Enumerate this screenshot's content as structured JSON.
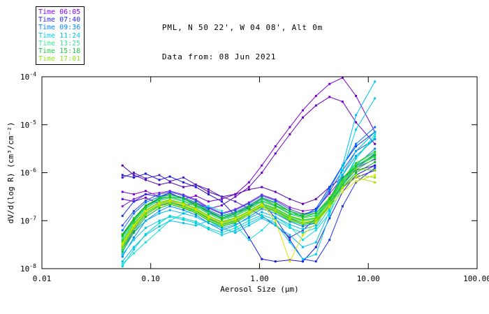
{
  "header": {
    "title_line1": "PML, N 50 22', W 04 08', Alt 0m",
    "title_line2": "Data from: 08 Jun 2021"
  },
  "legend": {
    "items": [
      {
        "label": "Time 06:05",
        "color": "#7F00FF"
      },
      {
        "label": "Time 07:40",
        "color": "#2A2AFF"
      },
      {
        "label": "Time 09:36",
        "color": "#0088FF"
      },
      {
        "label": "Time 11:24",
        "color": "#00CCF0"
      },
      {
        "label": "Time 13:25",
        "color": "#3BE89A"
      },
      {
        "label": "Time 15:18",
        "color": "#22CC44"
      },
      {
        "label": "Time 17:01",
        "color": "#8CE817"
      }
    ]
  },
  "chart_data": {
    "type": "line",
    "title": "PML, N 50 22', W 04 08', Alt 0m — Data from: 08 Jun 2021",
    "xlabel": "Aerosol Size (μm)",
    "ylabel": "dV/d(log R) (cm³/cm⁻²)",
    "x_scale": "log",
    "y_scale": "log",
    "grid": false,
    "marker": "square",
    "legend_position": "top-left",
    "xlim": [
      0.01,
      100
    ],
    "ylim_exp": [
      -8,
      -4
    ],
    "x_ticks": [
      0.01,
      0.1,
      1.0,
      10.0,
      100.0
    ],
    "x_tick_labels": [
      "0.01",
      "0.10",
      "1.00",
      "10.00",
      "100.00"
    ],
    "y_tick_base": "10",
    "y_tick_exponents": [
      -4,
      -5,
      -6,
      -7,
      -8
    ],
    "x": [
      0.055,
      0.07,
      0.09,
      0.12,
      0.15,
      0.2,
      0.26,
      0.34,
      0.45,
      0.6,
      0.8,
      1.05,
      1.4,
      1.9,
      2.5,
      3.3,
      4.4,
      5.8,
      7.7,
      11.5
    ],
    "series": [
      {
        "color": "#7A00D8",
        "y_log10": [
          -6.4,
          -6.45,
          -6.38,
          -6.5,
          -6.42,
          -6.55,
          -6.48,
          -6.6,
          -6.55,
          -6.45,
          -6.2,
          -5.85,
          -5.45,
          -5.05,
          -4.7,
          -4.4,
          -4.15,
          -4.02,
          -4.4,
          -5.15
        ]
      },
      {
        "color": "#6A00C8",
        "y_log10": [
          -6.55,
          -6.6,
          -6.52,
          -6.65,
          -6.58,
          -6.7,
          -6.62,
          -6.75,
          -6.68,
          -6.5,
          -6.3,
          -6.0,
          -5.6,
          -5.2,
          -4.85,
          -4.6,
          -4.42,
          -4.52,
          -4.95,
          -5.4
        ]
      },
      {
        "color": "#5A00B0",
        "y_log10": [
          -5.85,
          -6.05,
          -6.15,
          -6.25,
          -6.2,
          -6.3,
          -6.25,
          -6.4,
          -6.5,
          -6.45,
          -6.35,
          -6.3,
          -6.4,
          -6.55,
          -6.65,
          -6.55,
          -6.3,
          -6.1,
          -5.95,
          -5.85
        ]
      },
      {
        "color": "#4A20C0",
        "y_log10": [
          -6.1,
          -6.0,
          -6.12,
          -6.05,
          -6.18,
          -6.1,
          -6.25,
          -6.35,
          -6.5,
          -6.6,
          -6.75,
          -6.9,
          -7.1,
          -7.35,
          -7.2,
          -6.95,
          -6.6,
          -6.3,
          -6.1,
          -5.95
        ]
      },
      {
        "color": "#8A20E0",
        "y_log10": [
          -6.7,
          -6.55,
          -6.45,
          -6.42,
          -6.38,
          -6.46,
          -6.56,
          -6.72,
          -6.84,
          -6.76,
          -6.62,
          -6.46,
          -6.56,
          -6.72,
          -6.8,
          -6.76,
          -6.44,
          -6.1,
          -5.9,
          -5.72
        ]
      },
      {
        "color": "#1818E0",
        "y_log10": [
          -6.05,
          -6.1,
          -6.02,
          -6.15,
          -6.08,
          -6.2,
          -6.3,
          -6.45,
          -6.6,
          -6.9,
          -7.35,
          -7.8,
          -7.85,
          -7.82,
          -7.85,
          -7.55,
          -6.95,
          -6.4,
          -6.05,
          -5.85
        ]
      },
      {
        "color": "#2030E8",
        "y_log10": [
          -6.9,
          -6.6,
          -6.45,
          -6.5,
          -6.42,
          -6.55,
          -6.65,
          -6.8,
          -6.95,
          -6.85,
          -6.7,
          -6.6,
          -6.95,
          -7.4,
          -7.8,
          -7.85,
          -7.4,
          -6.7,
          -6.2,
          -5.9
        ]
      },
      {
        "color": "#0040F0",
        "y_log10": [
          -7.3,
          -6.95,
          -6.7,
          -6.55,
          -6.5,
          -6.58,
          -6.68,
          -6.82,
          -6.95,
          -6.88,
          -6.72,
          -6.58,
          -6.68,
          -6.85,
          -6.9,
          -6.75,
          -6.3,
          -5.85,
          -5.45,
          -5.15
        ]
      },
      {
        "color": "#2A2AFF",
        "y_log10": [
          -7.6,
          -7.2,
          -6.88,
          -6.7,
          -6.62,
          -6.7,
          -6.8,
          -6.95,
          -7.08,
          -7.0,
          -6.85,
          -6.68,
          -6.78,
          -6.95,
          -7.05,
          -7.0,
          -6.65,
          -6.25,
          -5.9,
          -5.6
        ]
      },
      {
        "color": "#3048E0",
        "y_log10": [
          -7.1,
          -6.8,
          -6.58,
          -6.45,
          -6.4,
          -6.48,
          -6.58,
          -6.74,
          -6.86,
          -6.78,
          -6.64,
          -6.48,
          -6.58,
          -6.76,
          -6.86,
          -6.8,
          -6.4,
          -5.95,
          -5.55,
          -5.3
        ]
      },
      {
        "color": "#0070FF",
        "y_log10": [
          -7.2,
          -6.85,
          -6.62,
          -6.5,
          -6.45,
          -6.52,
          -6.62,
          -6.78,
          -6.9,
          -6.82,
          -6.68,
          -6.52,
          -6.62,
          -6.8,
          -6.88,
          -6.8,
          -6.35,
          -5.85,
          -5.4,
          -5.05
        ]
      },
      {
        "color": "#0088F8",
        "y_log10": [
          -7.75,
          -7.35,
          -7.0,
          -6.8,
          -6.7,
          -6.78,
          -6.88,
          -7.05,
          -7.2,
          -7.1,
          -6.92,
          -6.75,
          -6.85,
          -7.02,
          -7.12,
          -7.05,
          -6.7,
          -6.25,
          -5.85,
          -5.5
        ]
      },
      {
        "color": "#0098F0",
        "y_log10": [
          -7.5,
          -7.1,
          -6.82,
          -6.66,
          -6.58,
          -6.66,
          -6.76,
          -6.92,
          -7.05,
          -6.96,
          -6.8,
          -6.64,
          -6.74,
          -6.92,
          -7.0,
          -6.94,
          -6.55,
          -6.05,
          -5.65,
          -5.3
        ]
      },
      {
        "color": "#00C0F0",
        "y_log10": [
          -7.85,
          -7.55,
          -7.3,
          -7.12,
          -7.0,
          -7.05,
          -7.1,
          -7.0,
          -7.15,
          -7.25,
          -7.1,
          -6.95,
          -7.1,
          -7.3,
          -7.55,
          -7.45,
          -6.8,
          -5.85,
          -4.8,
          -4.1
        ]
      },
      {
        "color": "#00CCE8",
        "y_log10": [
          -7.7,
          -7.4,
          -7.15,
          -7.0,
          -6.92,
          -6.98,
          -7.05,
          -7.18,
          -7.3,
          -7.2,
          -7.05,
          -6.92,
          -7.05,
          -7.45,
          -7.8,
          -7.7,
          -6.9,
          -5.95,
          -5.1,
          -4.45
        ]
      },
      {
        "color": "#10E0E0",
        "y_log10": [
          -7.9,
          -7.68,
          -7.45,
          -7.2,
          -7.0,
          -6.85,
          -6.75,
          -6.7,
          -6.8,
          -7.1,
          -7.4,
          -7.2,
          -6.92,
          -7.12,
          -7.4,
          -7.2,
          -6.85,
          -6.3,
          -5.7,
          -5.2
        ]
      },
      {
        "color": "#00D8D0",
        "y_log10": [
          -7.95,
          -7.6,
          -7.28,
          -7.05,
          -6.9,
          -6.95,
          -7.02,
          -7.15,
          -7.25,
          -7.15,
          -7.0,
          -6.88,
          -6.98,
          -7.15,
          -7.25,
          -7.15,
          -6.75,
          -6.2,
          -5.7,
          -5.25
        ]
      },
      {
        "color": "#00B8E8",
        "y_log10": [
          -7.6,
          -7.25,
          -7.0,
          -6.85,
          -6.78,
          -6.85,
          -6.92,
          -7.05,
          -7.15,
          -7.08,
          -6.95,
          -6.82,
          -6.92,
          -7.08,
          -7.18,
          -7.1,
          -6.65,
          -6.05,
          -5.55,
          -5.15
        ]
      },
      {
        "color": "#2EE08C",
        "y_log10": [
          -7.5,
          -7.1,
          -6.8,
          -6.64,
          -6.58,
          -6.66,
          -6.76,
          -6.92,
          -7.04,
          -6.96,
          -6.82,
          -6.66,
          -6.76,
          -6.92,
          -7.0,
          -6.96,
          -6.62,
          -6.22,
          -5.9,
          -5.65
        ]
      },
      {
        "color": "#40E8A0",
        "y_log10": [
          -7.35,
          -7.0,
          -6.72,
          -6.56,
          -6.5,
          -6.58,
          -6.68,
          -6.84,
          -6.96,
          -6.88,
          -6.74,
          -6.58,
          -6.68,
          -6.84,
          -6.92,
          -6.88,
          -6.55,
          -6.15,
          -5.82,
          -5.58
        ]
      },
      {
        "color": "#28D878",
        "y_log10": [
          -7.44,
          -7.06,
          -6.78,
          -6.63,
          -6.57,
          -6.63,
          -6.75,
          -6.9,
          -7.03,
          -6.95,
          -6.81,
          -6.65,
          -6.75,
          -6.91,
          -6.99,
          -6.95,
          -6.61,
          -6.21,
          -5.89,
          -5.66
        ]
      },
      {
        "color": "#18C838",
        "y_log10": [
          -7.55,
          -7.15,
          -6.85,
          -6.68,
          -6.62,
          -6.7,
          -6.8,
          -6.96,
          -7.08,
          -7.0,
          -6.85,
          -6.7,
          -6.8,
          -6.96,
          -7.05,
          -7.0,
          -6.66,
          -6.26,
          -5.94,
          -5.7
        ]
      },
      {
        "color": "#20D040",
        "y_log10": [
          -7.4,
          -7.02,
          -6.74,
          -6.58,
          -6.52,
          -6.6,
          -6.7,
          -6.86,
          -6.98,
          -6.9,
          -6.76,
          -6.6,
          -6.7,
          -6.86,
          -6.94,
          -6.9,
          -6.58,
          -6.18,
          -5.86,
          -5.62
        ]
      },
      {
        "color": "#00B830",
        "y_log10": [
          -7.65,
          -7.25,
          -6.92,
          -6.74,
          -6.66,
          -6.74,
          -6.84,
          -7.0,
          -7.12,
          -7.04,
          -6.88,
          -6.72,
          -6.82,
          -7.0,
          -7.08,
          -7.04,
          -6.7,
          -6.3,
          -6.0,
          -5.78
        ]
      },
      {
        "color": "#30C818",
        "y_log10": [
          -7.28,
          -6.95,
          -6.68,
          -6.52,
          -6.46,
          -6.54,
          -6.64,
          -6.8,
          -6.92,
          -6.84,
          -6.7,
          -6.54,
          -6.64,
          -6.8,
          -6.88,
          -6.84,
          -6.52,
          -6.12,
          -5.8,
          -5.56
        ]
      },
      {
        "color": "#10C020",
        "y_log10": [
          -7.32,
          -6.98,
          -6.7,
          -6.53,
          -6.5,
          -6.54,
          -6.68,
          -6.8,
          -6.96,
          -6.84,
          -6.74,
          -6.54,
          -6.68,
          -6.8,
          -6.92,
          -6.84,
          -6.56,
          -6.12,
          -5.86,
          -5.64
        ]
      },
      {
        "color": "#66D800",
        "y_log10": [
          -7.45,
          -7.08,
          -6.78,
          -6.62,
          -6.56,
          -6.64,
          -6.74,
          -6.9,
          -7.02,
          -6.94,
          -6.8,
          -6.64,
          -6.74,
          -6.9,
          -6.98,
          -6.94,
          -6.6,
          -6.2,
          -5.92,
          -5.95
        ]
      },
      {
        "color": "#8CE000",
        "y_log10": [
          -7.58,
          -7.18,
          -6.88,
          -6.7,
          -6.64,
          -6.72,
          -6.82,
          -6.98,
          -7.1,
          -7.02,
          -6.88,
          -6.72,
          -6.82,
          -6.98,
          -7.06,
          -7.02,
          -6.68,
          -6.3,
          -6.05,
          -6.1
        ]
      },
      {
        "color": "#AAE000",
        "y_log10": [
          -7.52,
          -7.12,
          -6.82,
          -6.66,
          -6.6,
          -6.68,
          -6.78,
          -6.94,
          -7.06,
          -6.98,
          -6.84,
          -6.68,
          -6.78,
          -6.94,
          -7.02,
          -6.98,
          -6.66,
          -6.32,
          -6.1,
          -6.2
        ]
      },
      {
        "color": "#E2E200",
        "y_log10": [
          -7.48,
          -7.1,
          -6.8,
          -6.64,
          -6.58,
          -6.66,
          -6.76,
          -6.92,
          -7.04,
          -6.96,
          -6.82,
          -6.66,
          -7.0,
          -7.85,
          -7.3,
          -7.05,
          -6.72,
          -6.4,
          -6.18,
          -6.05
        ]
      }
    ]
  }
}
